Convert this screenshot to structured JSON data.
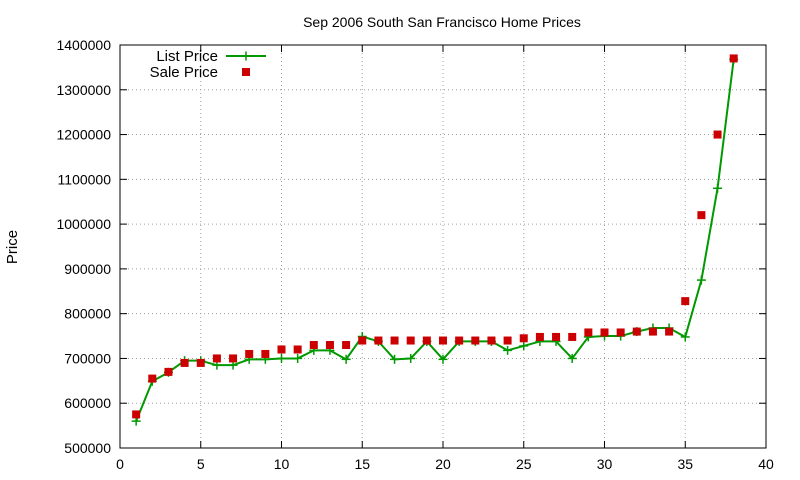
{
  "chart_data": {
    "type": "line",
    "title": "Sep 2006 South San Francisco Home Prices",
    "xlabel": "",
    "ylabel": "Price",
    "xlim": [
      0,
      40
    ],
    "ylim": [
      500000,
      1400000
    ],
    "xticks": [
      0,
      5,
      10,
      15,
      20,
      25,
      30,
      35,
      40
    ],
    "yticks": [
      500000,
      600000,
      700000,
      800000,
      900000,
      1000000,
      1100000,
      1200000,
      1300000,
      1400000
    ],
    "grid": true,
    "legend_position": "top-left",
    "series": [
      {
        "name": "List Price",
        "style": "line+markers",
        "marker": "plus",
        "color": "#009900",
        "x": [
          1,
          2,
          3,
          4,
          5,
          6,
          7,
          8,
          9,
          10,
          11,
          12,
          13,
          14,
          15,
          16,
          17,
          18,
          19,
          20,
          21,
          22,
          23,
          24,
          25,
          26,
          27,
          28,
          29,
          30,
          31,
          32,
          33,
          34,
          35,
          36,
          37,
          38
        ],
        "y": [
          560000,
          649000,
          669000,
          695000,
          695000,
          685000,
          685000,
          698000,
          698000,
          700000,
          700000,
          718000,
          718000,
          698000,
          749000,
          738000,
          698000,
          700000,
          738000,
          698000,
          738000,
          738000,
          738000,
          718000,
          728000,
          738000,
          738000,
          700000,
          748000,
          750000,
          750000,
          760000,
          768000,
          768000,
          748000,
          875000,
          1080000,
          1368000
        ]
      },
      {
        "name": "Sale Price",
        "style": "markers",
        "marker": "square",
        "color": "#cc0000",
        "x": [
          1,
          2,
          3,
          4,
          5,
          6,
          7,
          8,
          9,
          10,
          11,
          12,
          13,
          14,
          15,
          16,
          17,
          18,
          19,
          20,
          21,
          22,
          23,
          24,
          25,
          26,
          27,
          28,
          29,
          30,
          31,
          32,
          33,
          34,
          35,
          36,
          37,
          38
        ],
        "y": [
          575000,
          655000,
          670000,
          690000,
          690000,
          700000,
          700000,
          710000,
          710000,
          720000,
          720000,
          730000,
          730000,
          730000,
          740000,
          740000,
          740000,
          740000,
          740000,
          740000,
          740000,
          740000,
          740000,
          740000,
          745000,
          748000,
          748000,
          748000,
          758000,
          758000,
          758000,
          760000,
          760000,
          760000,
          828000,
          1020000,
          1200000,
          1370000
        ]
      }
    ]
  }
}
